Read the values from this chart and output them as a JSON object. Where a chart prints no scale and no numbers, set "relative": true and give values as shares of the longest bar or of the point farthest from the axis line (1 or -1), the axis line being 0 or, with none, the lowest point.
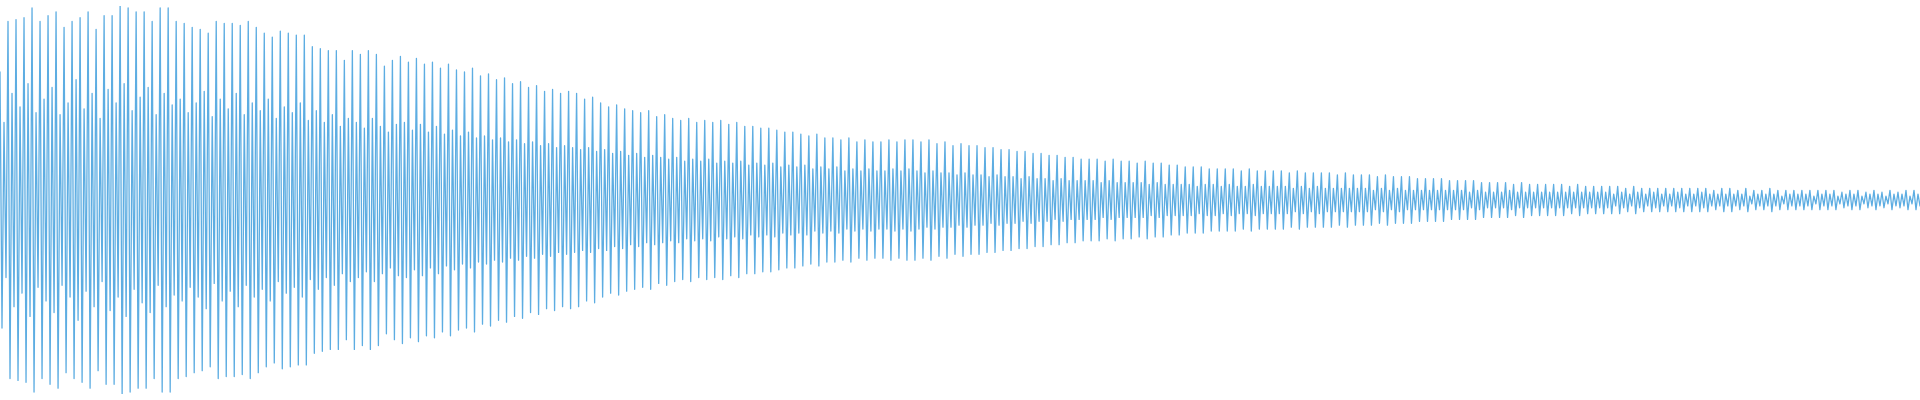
{
  "chart_data": {
    "type": "line",
    "relative": true,
    "color": "#5dade2",
    "categories": [
      null,
      null,
      null,
      null,
      null,
      null,
      null,
      null,
      null,
      null,
      null,
      null,
      null,
      null,
      null,
      null,
      null,
      null,
      null,
      null,
      null,
      null,
      null,
      null,
      null,
      null,
      null,
      null,
      null,
      null,
      null,
      null,
      null,
      null,
      null,
      null,
      null,
      null,
      null,
      null,
      null,
      null,
      null,
      null,
      null,
      null,
      null,
      null,
      null,
      null,
      null,
      null,
      null,
      null,
      null,
      null,
      null,
      null,
      null,
      null,
      null,
      null,
      null,
      null,
      null,
      null,
      null,
      null,
      null,
      null,
      null,
      null,
      null,
      null,
      null,
      null,
      null,
      null,
      null,
      null,
      null,
      null,
      null,
      null,
      null,
      null,
      null,
      null,
      null,
      null,
      null,
      null,
      null,
      null,
      null,
      null,
      null,
      null,
      null,
      null,
      null,
      null,
      null,
      null,
      null,
      null,
      null,
      null,
      null,
      null,
      null,
      null,
      null,
      null,
      null,
      null,
      null,
      null,
      null,
      null,
      null,
      null,
      null,
      null,
      null,
      null,
      null,
      null,
      null,
      null,
      null,
      null,
      null,
      null,
      null,
      null,
      null,
      null,
      null,
      null,
      null,
      null,
      null,
      null,
      null,
      null,
      null,
      null,
      null,
      null,
      null,
      null,
      null,
      null,
      null,
      null,
      null,
      null,
      null,
      null,
      null,
      null,
      null,
      null,
      null,
      null,
      null,
      null,
      null,
      null,
      null,
      null,
      null,
      null,
      null,
      null,
      null,
      null,
      null,
      null,
      null,
      null,
      null,
      null,
      null,
      null,
      null,
      null,
      null,
      null,
      null,
      null,
      null,
      null,
      null,
      null,
      null,
      null,
      null,
      null,
      null,
      null,
      null,
      null,
      null,
      null,
      null,
      null,
      null,
      null,
      null,
      null,
      null,
      null,
      null,
      null,
      null,
      null,
      null,
      null,
      null,
      null,
      null,
      null,
      null,
      null,
      null,
      null,
      null,
      null,
      null,
      null,
      null,
      null,
      null,
      null,
      null,
      null,
      null,
      null,
      null,
      null,
      null,
      null,
      null,
      null,
      null,
      null,
      null,
      null,
      null,
      null,
      null,
      null,
      null,
      null,
      null,
      null,
      null,
      null,
      null,
      null,
      null,
      null,
      null,
      null,
      null,
      null,
      null,
      null,
      null,
      null,
      null,
      null,
      null,
      null,
      null,
      null,
      null,
      null,
      null,
      null,
      null,
      null,
      null,
      null,
      null,
      null,
      null,
      null,
      null,
      null,
      null,
      null,
      null,
      null,
      null,
      null,
      null,
      null,
      null,
      null,
      null,
      null,
      null,
      null,
      null,
      null,
      null,
      null,
      null,
      null,
      null,
      null,
      null,
      null,
      null,
      null,
      null,
      null,
      null,
      null,
      null,
      null,
      null,
      null,
      null,
      null,
      null,
      null,
      null,
      null,
      null,
      null,
      null,
      null,
      null,
      null,
      null,
      null,
      null,
      null,
      null,
      null,
      null,
      null,
      null,
      null,
      null,
      null,
      null,
      null,
      null,
      null,
      null,
      null,
      null,
      null,
      null,
      null,
      null,
      null,
      null,
      null,
      null,
      null,
      null,
      null,
      null,
      null,
      null,
      null,
      null,
      null,
      null,
      null,
      null,
      null,
      null,
      null,
      null,
      null,
      null,
      null,
      null,
      null,
      null,
      null,
      null,
      null,
      null,
      null,
      null,
      null,
      null,
      null,
      null,
      null,
      null,
      null,
      null,
      null,
      null,
      null,
      null,
      null,
      null,
      null,
      null,
      null,
      null,
      null,
      null,
      null,
      null,
      null,
      null,
      null,
      null,
      null,
      null,
      null,
      null,
      null,
      null,
      null,
      null,
      null,
      null,
      null,
      null,
      null,
      null,
      null,
      null,
      null,
      null,
      null,
      null,
      null,
      null,
      null,
      null,
      null,
      null,
      null,
      null,
      null,
      null,
      null,
      null,
      null,
      null,
      null,
      null,
      null,
      null,
      null,
      null,
      null,
      null,
      null,
      null,
      null,
      null,
      null,
      null,
      null,
      null,
      null,
      null,
      null,
      null,
      null,
      null,
      null,
      null,
      null,
      null,
      null,
      null,
      null,
      null,
      null,
      null,
      null,
      null,
      null,
      null,
      null,
      null,
      null,
      null,
      null,
      null,
      null,
      null,
      null,
      null,
      null,
      null,
      null,
      null,
      null,
      null,
      null,
      null,
      null,
      null,
      null,
      null,
      null,
      null,
      null,
      null,
      null,
      null,
      null,
      null,
      null,
      null,
      null,
      null,
      null,
      null,
      null,
      null,
      null,
      null,
      null,
      null,
      null,
      null,
      null,
      null,
      null,
      null,
      null,
      null,
      null,
      null,
      null,
      null,
      null,
      null,
      null,
      null,
      null,
      null,
      null,
      null,
      null,
      null,
      null,
      null,
      null,
      null,
      null,
      null,
      null,
      null,
      null,
      null,
      null,
      null,
      null,
      null,
      null,
      null,
      null,
      null,
      null,
      null,
      null,
      null,
      null,
      null,
      null,
      null,
      null,
      null,
      null,
      null,
      null,
      null,
      null,
      null,
      null,
      null,
      null,
      null,
      null,
      null,
      null,
      null,
      null,
      null,
      null,
      null,
      null,
      null,
      null,
      null,
      null,
      null,
      null,
      null,
      null,
      null,
      null,
      null,
      null,
      null,
      null,
      null,
      null,
      null,
      null,
      null,
      null,
      null,
      null,
      null,
      null,
      null,
      null,
      null,
      null,
      null,
      null,
      null,
      null,
      null,
      null,
      null,
      null,
      null,
      null,
      null,
      null,
      null,
      null,
      null,
      null,
      null,
      null,
      null,
      null,
      null,
      null,
      null,
      null,
      null,
      null,
      null,
      null,
      null,
      null,
      null,
      null,
      null,
      null,
      null,
      null,
      null,
      null,
      null,
      null,
      null,
      null,
      null,
      null,
      null,
      null,
      null,
      null,
      null,
      null,
      null,
      null,
      null,
      null,
      null,
      null,
      null,
      null,
      null,
      null,
      null,
      null,
      null,
      null,
      null,
      null,
      null,
      null,
      null,
      null,
      null,
      null,
      null,
      null,
      null,
      null,
      null,
      null,
      null,
      null,
      null,
      null,
      null,
      null,
      null,
      null,
      null,
      null,
      null,
      null,
      null,
      null,
      null,
      null,
      null,
      null,
      null,
      null,
      null,
      null,
      null,
      null,
      null,
      null,
      null,
      null,
      null,
      null,
      null,
      null,
      null,
      null,
      null,
      null,
      null,
      null,
      null,
      null,
      null,
      null,
      null,
      null,
      null,
      null,
      null,
      null,
      null,
      null,
      null,
      null,
      null,
      null,
      null,
      null,
      null,
      null,
      null,
      null,
      null,
      null,
      null,
      null,
      null,
      null,
      null,
      null,
      null,
      null,
      null,
      null,
      null,
      null,
      null,
      null,
      null,
      null,
      null,
      null,
      null,
      null,
      null,
      null,
      null,
      null,
      null,
      null,
      null,
      null,
      null,
      null,
      null,
      null,
      null,
      null,
      null,
      null,
      null,
      null,
      null,
      null,
      null,
      null,
      null,
      null,
      null,
      null,
      null,
      null,
      null,
      null,
      null,
      null,
      null,
      null,
      null,
      null,
      null,
      null,
      null,
      null,
      null,
      null,
      null,
      null,
      null,
      null,
      null,
      null,
      null,
      null,
      null,
      null,
      null,
      null,
      null,
      null,
      null,
      null,
      null,
      null,
      null,
      null,
      null,
      null,
      null,
      null,
      null,
      null,
      null,
      null,
      null,
      null,
      null,
      null,
      null,
      null,
      null,
      null,
      null,
      null,
      null,
      null,
      null,
      null,
      null,
      null,
      null,
      null,
      null,
      null,
      null,
      null,
      null,
      null,
      null,
      null,
      null,
      null,
      null,
      null,
      null,
      null,
      null,
      null,
      null,
      null,
      null,
      null,
      null,
      null,
      null,
      null,
      null,
      null,
      null,
      null,
      null,
      null,
      null,
      null,
      null,
      null,
      null,
      null,
      null,
      null,
      null,
      null,
      null,
      null,
      null,
      null,
      null,
      null,
      null,
      null,
      null,
      null,
      null,
      null,
      null,
      null,
      null,
      null,
      null,
      null,
      null,
      null,
      null,
      null,
      null,
      null,
      null,
      null,
      null,
      null,
      null,
      null,
      null,
      null,
      null,
      null,
      null,
      null,
      null,
      null,
      null,
      null,
      null,
      null,
      null,
      null
    ],
    "values": [
      0.83,
      0.17,
      0.7,
      0.3,
      0.96,
      0.04,
      0.775,
      0.225,
      0.965,
      0.035,
      0.74,
      0.26,
      0.97,
      0.03,
      0.8,
      0.2,
      0.995,
      0.005,
      0.725,
      0.275,
      0.96,
      0.04,
      0.76,
      0.24,
      0.975,
      0.025,
      0.79,
      0.21,
      0.985,
      0.015,
      0.72,
      0.28,
      0.945,
      0.055,
      0.75,
      0.25,
      0.96,
      0.04,
      0.81,
      0.19,
      0.97,
      0.03,
      0.735,
      0.265,
      0.985,
      0.015,
      0.775,
      0.225,
      0.94,
      0.06,
      0.71,
      0.29,
      0.975,
      0.025,
      0.785,
      0.215,
      0.975,
      0.025,
      0.75,
      0.25,
      1,
      0,
      0.8,
      0.2,
      0.995,
      0.005,
      0.73,
      0.27,
      0.985,
      0.015,
      0.765,
      0.235,
      0.985,
      0.015,
      0.79,
      0.21,
      0.96,
      0.04,
      0.72,
      0.28,
      0.995,
      0.005,
      0.775,
      0.225,
      0.995,
      0.005,
      0.745,
      0.255,
      0.96,
      0.04,
      0.76,
      0.24,
      0.955,
      0.045,
      0.725,
      0.275,
      0.945,
      0.055,
      0.75,
      0.25,
      0.94,
      0.06,
      0.78,
      0.22,
      0.93,
      0.07,
      0.715,
      0.285,
      0.96,
      0.04,
      0.76,
      0.24,
      0.955,
      0.045,
      0.735,
      0.265,
      0.955,
      0.045,
      0.775,
      0.225,
      0.95,
      0.05,
      0.72,
      0.28,
      0.96,
      0.04,
      0.75,
      0.25,
      0.945,
      0.055,
      0.73,
      0.27,
      0.93,
      0.07,
      0.76,
      0.24,
      0.92,
      0.08,
      0.71,
      0.29,
      0.935,
      0.065,
      0.74,
      0.26,
      0.93,
      0.07,
      0.725,
      0.275,
      0.925,
      0.075,
      0.75,
      0.25,
      0.925,
      0.075,
      0.705,
      0.295,
      0.895,
      0.105,
      0.73,
      0.27,
      0.89,
      0.11,
      0.7,
      0.3,
      0.885,
      0.115,
      0.72,
      0.28,
      0.885,
      0.115,
      0.69,
      0.31,
      0.86,
      0.14,
      0.71,
      0.29,
      0.885,
      0.115,
      0.7,
      0.3,
      0.875,
      0.125,
      0.685,
      0.315,
      0.885,
      0.115,
      0.71,
      0.29,
      0.875,
      0.125,
      0.69,
      0.31,
      0.845,
      0.155,
      0.675,
      0.325,
      0.86,
      0.14,
      0.695,
      0.305,
      0.87,
      0.13,
      0.7,
      0.3,
      0.855,
      0.145,
      0.68,
      0.32,
      0.865,
      0.135,
      0.695,
      0.305,
      0.85,
      0.15,
      0.675,
      0.325,
      0.855,
      0.145,
      0.69,
      0.31,
      0.84,
      0.16,
      0.67,
      0.33,
      0.85,
      0.15,
      0.68,
      0.32,
      0.835,
      0.165,
      0.665,
      0.335,
      0.83,
      0.17,
      0.675,
      0.325,
      0.84,
      0.16,
      0.66,
      0.34,
      0.82,
      0.18,
      0.665,
      0.335,
      0.825,
      0.175,
      0.655,
      0.345,
      0.81,
      0.19,
      0.66,
      0.34,
      0.815,
      0.185,
      0.65,
      0.35,
      0.8,
      0.2,
      0.655,
      0.345,
      0.805,
      0.195,
      0.645,
      0.355,
      0.79,
      0.21,
      0.65,
      0.35,
      0.795,
      0.205,
      0.64,
      0.36,
      0.78,
      0.22,
      0.645,
      0.355,
      0.785,
      0.215,
      0.635,
      0.365,
      0.775,
      0.225,
      0.64,
      0.36,
      0.78,
      0.22,
      0.635,
      0.365,
      0.775,
      0.225,
      0.63,
      0.37,
      0.76,
      0.24,
      0.635,
      0.365,
      0.765,
      0.235,
      0.625,
      0.375,
      0.75,
      0.25,
      0.63,
      0.37,
      0.74,
      0.26,
      0.62,
      0.38,
      0.745,
      0.255,
      0.625,
      0.375,
      0.735,
      0.265,
      0.615,
      0.385,
      0.73,
      0.27,
      0.62,
      0.38,
      0.725,
      0.275,
      0.61,
      0.39,
      0.73,
      0.27,
      0.615,
      0.385,
      0.715,
      0.285,
      0.61,
      0.39,
      0.72,
      0.28,
      0.605,
      0.395,
      0.71,
      0.29,
      0.61,
      0.39,
      0.705,
      0.295,
      0.6,
      0.4,
      0.71,
      0.29,
      0.605,
      0.395,
      0.7,
      0.3,
      0.6,
      0.4,
      0.705,
      0.295,
      0.605,
      0.395,
      0.7,
      0.3,
      0.595,
      0.405,
      0.705,
      0.295,
      0.6,
      0.4,
      0.695,
      0.305,
      0.595,
      0.405,
      0.7,
      0.3,
      0.6,
      0.4,
      0.69,
      0.31,
      0.59,
      0.41,
      0.69,
      0.31,
      0.595,
      0.405,
      0.685,
      0.315,
      0.59,
      0.41,
      0.685,
      0.315,
      0.595,
      0.405,
      0.68,
      0.32,
      0.585,
      0.415,
      0.675,
      0.325,
      0.59,
      0.41,
      0.675,
      0.325,
      0.585,
      0.415,
      0.67,
      0.33,
      0.59,
      0.41,
      0.665,
      0.335,
      0.58,
      0.42,
      0.67,
      0.33,
      0.585,
      0.415,
      0.66,
      0.34,
      0.58,
      0.42,
      0.66,
      0.34,
      0.585,
      0.415,
      0.655,
      0.345,
      0.575,
      0.425,
      0.66,
      0.34,
      0.58,
      0.42,
      0.65,
      0.35,
      0.575,
      0.425,
      0.655,
      0.345,
      0.58,
      0.42,
      0.65,
      0.35,
      0.575,
      0.425,
      0.65,
      0.35,
      0.575,
      0.425,
      0.655,
      0.345,
      0.58,
      0.42,
      0.65,
      0.35,
      0.575,
      0.425,
      0.655,
      0.345,
      0.58,
      0.42,
      0.655,
      0.345,
      0.575,
      0.425,
      0.65,
      0.35,
      0.57,
      0.43,
      0.655,
      0.345,
      0.575,
      0.425,
      0.645,
      0.355,
      0.57,
      0.43,
      0.65,
      0.35,
      0.57,
      0.43,
      0.64,
      0.36,
      0.565,
      0.435,
      0.645,
      0.355,
      0.57,
      0.43,
      0.64,
      0.36,
      0.565,
      0.435,
      0.64,
      0.36,
      0.565,
      0.435,
      0.635,
      0.365,
      0.56,
      0.44,
      0.635,
      0.365,
      0.565,
      0.435,
      0.63,
      0.37,
      0.56,
      0.44,
      0.63,
      0.37,
      0.56,
      0.44,
      0.625,
      0.375,
      0.555,
      0.445,
      0.625,
      0.375,
      0.56,
      0.44,
      0.62,
      0.38,
      0.555,
      0.445,
      0.62,
      0.38,
      0.555,
      0.445,
      0.615,
      0.385,
      0.55,
      0.45,
      0.615,
      0.385,
      0.555,
      0.445,
      0.61,
      0.39,
      0.55,
      0.45,
      0.61,
      0.39,
      0.55,
      0.45,
      0.605,
      0.395,
      0.55,
      0.45,
      0.605,
      0.395,
      0.55,
      0.45,
      0.605,
      0.395,
      0.545,
      0.455,
      0.6,
      0.4,
      0.55,
      0.45,
      0.605,
      0.395,
      0.545,
      0.455,
      0.6,
      0.4,
      0.545,
      0.455,
      0.6,
      0.4,
      0.545,
      0.455,
      0.595,
      0.405,
      0.545,
      0.455,
      0.6,
      0.4,
      0.54,
      0.46,
      0.595,
      0.405,
      0.545,
      0.455,
      0.595,
      0.405,
      0.54,
      0.46,
      0.59,
      0.41,
      0.54,
      0.46,
      0.59,
      0.41,
      0.54,
      0.46,
      0.585,
      0.415,
      0.54,
      0.46,
      0.585,
      0.415,
      0.535,
      0.465,
      0.585,
      0.415,
      0.54,
      0.46,
      0.58,
      0.42,
      0.54,
      0.46,
      0.58,
      0.42,
      0.535,
      0.465,
      0.58,
      0.42,
      0.54,
      0.46,
      0.58,
      0.42,
      0.535,
      0.465,
      0.575,
      0.425,
      0.535,
      0.465,
      0.58,
      0.42,
      0.54,
      0.46,
      0.575,
      0.425,
      0.535,
      0.465,
      0.575,
      0.425,
      0.535,
      0.465,
      0.575,
      0.425,
      0.535,
      0.465,
      0.575,
      0.425,
      0.535,
      0.465,
      0.57,
      0.43,
      0.53,
      0.47,
      0.575,
      0.425,
      0.535,
      0.465,
      0.57,
      0.43,
      0.53,
      0.47,
      0.57,
      0.43,
      0.535,
      0.465,
      0.57,
      0.43,
      0.53,
      0.47,
      0.57,
      0.43,
      0.53,
      0.47,
      0.565,
      0.435,
      0.53,
      0.47,
      0.57,
      0.43,
      0.53,
      0.47,
      0.565,
      0.435,
      0.53,
      0.47,
      0.565,
      0.435,
      0.53,
      0.47,
      0.565,
      0.435,
      0.525,
      0.475,
      0.56,
      0.44,
      0.53,
      0.47,
      0.565,
      0.435,
      0.525,
      0.475,
      0.56,
      0.44,
      0.53,
      0.47,
      0.56,
      0.44,
      0.525,
      0.475,
      0.56,
      0.44,
      0.525,
      0.475,
      0.555,
      0.445,
      0.525,
      0.475,
      0.555,
      0.445,
      0.525,
      0.475,
      0.555,
      0.445,
      0.525,
      0.475,
      0.555,
      0.445,
      0.525,
      0.475,
      0.55,
      0.45,
      0.525,
      0.475,
      0.55,
      0.45,
      0.525,
      0.475,
      0.55,
      0.45,
      0.52,
      0.48,
      0.55,
      0.45,
      0.525,
      0.475,
      0.545,
      0.455,
      0.52,
      0.48,
      0.545,
      0.455,
      0.52,
      0.48,
      0.545,
      0.455,
      0.52,
      0.48,
      0.545,
      0.455,
      0.525,
      0.475,
      0.54,
      0.46,
      0.52,
      0.48,
      0.545,
      0.455,
      0.52,
      0.48,
      0.54,
      0.46,
      0.52,
      0.48,
      0.54,
      0.46,
      0.52,
      0.48,
      0.54,
      0.46,
      0.52,
      0.48,
      0.54,
      0.46,
      0.52,
      0.48,
      0.54,
      0.46,
      0.52,
      0.48,
      0.535,
      0.465,
      0.52,
      0.48,
      0.54,
      0.46,
      0.52,
      0.48,
      0.535,
      0.465,
      0.52,
      0.48,
      0.535,
      0.465,
      0.52,
      0.48,
      0.535,
      0.465,
      0.52,
      0.48,
      0.535,
      0.465,
      0.515,
      0.485,
      0.535,
      0.465,
      0.52,
      0.48,
      0.53,
      0.47,
      0.515,
      0.485,
      0.535,
      0.465,
      0.52,
      0.48,
      0.53,
      0.47,
      0.515,
      0.485,
      0.53,
      0.47,
      0.52,
      0.48,
      0.53,
      0.47,
      0.515,
      0.485,
      0.53,
      0.47,
      0.515,
      0.485,
      0.53,
      0.47,
      0.52,
      0.48,
      0.53,
      0.47,
      0.515,
      0.485,
      0.53,
      0.47,
      0.515,
      0.485,
      0.53,
      0.47,
      0.52,
      0.48,
      0.53,
      0.47,
      0.515,
      0.485,
      0.525,
      0.475,
      0.515,
      0.485,
      0.53,
      0.47,
      0.515,
      0.485,
      0.53,
      0.47,
      0.515,
      0.485,
      0.525,
      0.475,
      0.515,
      0.485,
      0.53,
      0.47,
      0.51,
      0.49,
      0.525,
      0.475,
      0.515,
      0.485,
      0.525,
      0.475,
      0.515,
      0.485,
      0.53,
      0.47,
      0.515,
      0.485,
      0.525,
      0.475,
      0.51,
      0.49,
      0.525,
      0.475,
      0.515,
      0.485,
      0.525,
      0.475,
      0.515,
      0.485,
      0.525,
      0.475,
      0.515,
      0.485,
      0.525,
      0.475,
      0.51,
      0.49,
      0.525,
      0.475,
      0.515,
      0.485,
      0.525,
      0.475,
      0.515,
      0.485,
      0.525,
      0.475,
      0.51,
      0.49,
      0.52,
      0.48,
      0.515,
      0.485,
      0.525,
      0.475,
      0.515,
      0.485,
      0.525,
      0.475,
      0.51,
      0.49,
      0.52,
      0.48,
      0.515,
      0.485,
      0.525,
      0.475,
      0.515,
      0.485,
      0.52,
      0.48,
      0.51,
      0.49,
      0.525,
      0.475,
      0.515,
      0.485,
      0.52,
      0.48,
      0.515,
      0.485,
      0.525,
      0.475,
      0.51,
      0.49,
      0.525,
      0.475,
      0.515,
      0.485
    ]
  }
}
